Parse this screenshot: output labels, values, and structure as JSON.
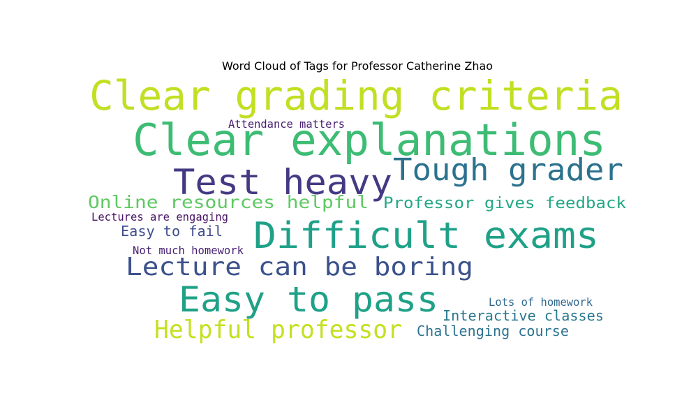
{
  "chart_data": {
    "type": "wordcloud",
    "title": "Word Cloud of Tags for Professor Catherine Zhao",
    "background": "#ffffff",
    "colormap": "viridis",
    "words": [
      {
        "text": "Clear grading criteria",
        "color": "#c2df23"
      },
      {
        "text": "Clear explanations",
        "color": "#3dbc74"
      },
      {
        "text": "Test heavy",
        "color": "#443a83"
      },
      {
        "text": "Tough grader",
        "color": "#2c728e"
      },
      {
        "text": "Difficult exams",
        "color": "#1fa188"
      },
      {
        "text": "Easy to pass",
        "color": "#1fa187"
      },
      {
        "text": "Lecture can be boring",
        "color": "#3b528b"
      },
      {
        "text": "Helpful professor",
        "color": "#c5e021"
      },
      {
        "text": "Online resources helpful",
        "color": "#5ec962"
      },
      {
        "text": "Professor gives feedback",
        "color": "#22a884"
      },
      {
        "text": "Interactive classes",
        "color": "#2a788e"
      },
      {
        "text": "Challenging course",
        "color": "#2c738e"
      },
      {
        "text": "Easy to fail",
        "color": "#3e4c8a"
      },
      {
        "text": "Attendance matters",
        "color": "#481f70"
      },
      {
        "text": "Lectures are engaging",
        "color": "#471365"
      },
      {
        "text": "Not much homework",
        "color": "#482173"
      },
      {
        "text": "Lots of homework",
        "color": "#31688e"
      }
    ]
  }
}
